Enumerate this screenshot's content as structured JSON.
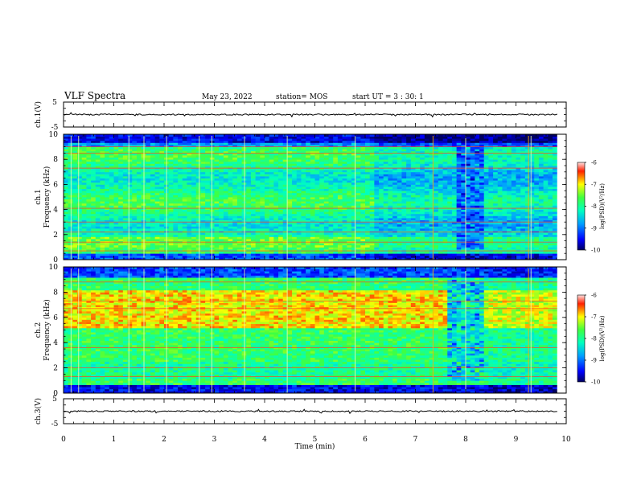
{
  "header": {
    "title": "VLF Spectra",
    "date": "May 23, 2022",
    "station": "station= MOS",
    "start": "start  UT =   3 : 30: 1"
  },
  "colors": {
    "spectrum_low": "#0000a0",
    "spectrum_mid": "#00e0a0",
    "spectrum_high": "#ff2000",
    "waveform": "#000000"
  },
  "chart_data": [
    {
      "type": "line",
      "panel": "waveform-ch1",
      "ylabel": "ch.1(V)",
      "ylim": [
        -5,
        5
      ],
      "yticks": [
        "5",
        "-5"
      ],
      "xlim": [
        0,
        10
      ],
      "x": [
        0,
        10
      ],
      "y": [
        0,
        0
      ]
    },
    {
      "type": "heatmap",
      "panel": "spectrogram-ch1",
      "ylabel": "ch.1\nFrequency  (kHz)",
      "ylim": [
        0,
        10
      ],
      "yticks": [
        "0",
        "2",
        "4",
        "6",
        "8",
        "10"
      ],
      "xlim": [
        0,
        10
      ],
      "colorbar": {
        "label": "log(PSD)(V²/Hz)",
        "range": [
          -10,
          -6
        ],
        "ticks": [
          "-6",
          "-7",
          "-8",
          "-9",
          "-10"
        ]
      }
    },
    {
      "type": "heatmap",
      "panel": "spectrogram-ch2",
      "ylabel": "ch.2\nFrequency  (kHz)",
      "ylim": [
        0,
        10
      ],
      "yticks": [
        "0",
        "2",
        "4",
        "6",
        "8",
        "10"
      ],
      "xlim": [
        0,
        10
      ],
      "colorbar": {
        "label": "log(PSD)(V²/Hz)",
        "range": [
          -10,
          -6
        ],
        "ticks": [
          "-6",
          "-7",
          "-8",
          "-9",
          "-10"
        ]
      }
    },
    {
      "type": "line",
      "panel": "waveform-ch3",
      "ylabel": "ch.3(V)",
      "ylim": [
        -5,
        5
      ],
      "yticks": [
        "5",
        "-5"
      ],
      "xlim": [
        0,
        10
      ],
      "x": [
        0,
        10
      ],
      "y": [
        0,
        0
      ]
    }
  ],
  "xaxis": {
    "label": "Time  (min)",
    "ticks": [
      "0",
      "1",
      "2",
      "3",
      "4",
      "5",
      "6",
      "7",
      "8",
      "9",
      "10"
    ]
  }
}
